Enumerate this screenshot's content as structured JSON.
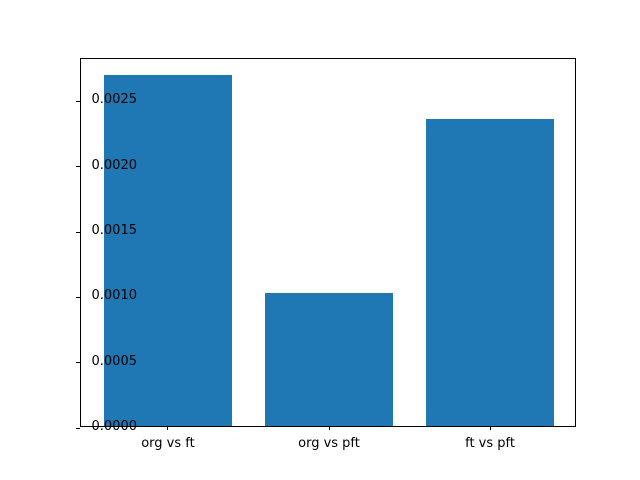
{
  "chart_data": {
    "type": "bar",
    "title": "",
    "xlabel": "",
    "ylabel": "",
    "categories": [
      "org vs ft",
      "org vs pft",
      "ft vs pft"
    ],
    "values": [
      0.00269,
      0.00102,
      0.00235
    ],
    "ytick_labels": [
      "0.0000",
      "0.0005",
      "0.0010",
      "0.0015",
      "0.0020",
      "0.0025"
    ],
    "ytick_values": [
      0.0,
      0.0005,
      0.001,
      0.0015,
      0.002,
      0.0025
    ],
    "ylim": [
      0,
      0.0028245
    ],
    "xlim": [
      -0.54,
      2.54
    ],
    "bar_width_data_units": 0.8,
    "grid": false,
    "legend": null,
    "bar_color": "#1f77b4",
    "spine_color": "#000000",
    "text_color": "#000000",
    "background_color": "#ffffff"
  }
}
